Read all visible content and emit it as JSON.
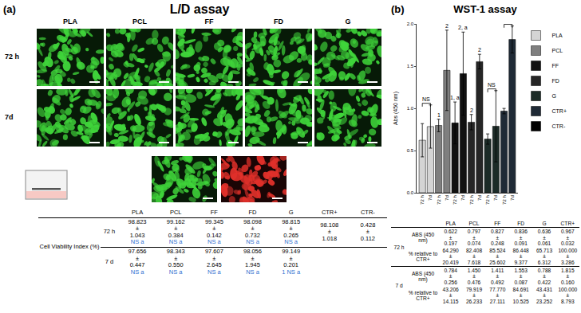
{
  "sign": "±",
  "panel_a": {
    "label": "(a)",
    "title": "L/D assay",
    "columns": [
      "PLA",
      "PCL",
      "FF",
      "FD",
      "G"
    ],
    "rows": [
      "72 h",
      "7d"
    ],
    "table": {
      "row_title": "Cell Viability Index (%)",
      "header": [
        "PLA",
        "PCL",
        "FF",
        "FD",
        "G",
        "CTR+",
        "CTR-"
      ],
      "rows": [
        {
          "time": "72 h",
          "cells": [
            {
              "mean": "98.823",
              "sd": "1.043",
              "note": "NS a"
            },
            {
              "mean": "99.162",
              "sd": "0.384",
              "note": "NS a"
            },
            {
              "mean": "99.345",
              "sd": "0.142",
              "note": "NS a"
            },
            {
              "mean": "98.098",
              "sd": "0.732",
              "note": "NS a"
            },
            {
              "mean": "98.815",
              "sd": "0.265",
              "note": "NS a"
            },
            {
              "mean": "98.108",
              "sd": "1.018"
            },
            {
              "mean": "0.428",
              "sd": "0.112"
            }
          ]
        },
        {
          "time": "7 d",
          "cells": [
            {
              "mean": "97.656",
              "sd": "0.447",
              "note": "NS a"
            },
            {
              "mean": "98.343",
              "sd": "0.550",
              "note": "NS a"
            },
            {
              "mean": "97.607",
              "sd": "2.645",
              "note": "NS a"
            },
            {
              "mean": "98.056",
              "sd": "1.945",
              "note": "NS a"
            },
            {
              "mean": "99.149",
              "sd": "0.201",
              "note": "1 NS a"
            },
            null,
            null
          ]
        }
      ]
    }
  },
  "panel_b": {
    "label": "(b)",
    "table": {
      "header": [
        "PLA",
        "PCL",
        "FF",
        "FD",
        "G",
        "CTR+"
      ],
      "rows": [
        {
          "time": "72 h",
          "measures": [
            {
              "name": "ABS (450 nm)",
              "cells": [
                {
                  "mean": "0.622",
                  "sd": "0.197"
                },
                {
                  "mean": "0.797",
                  "sd": "0.074"
                },
                {
                  "mean": "0.827",
                  "sd": "0.248"
                },
                {
                  "mean": "0.836",
                  "sd": "0.091"
                },
                {
                  "mean": "0.636",
                  "sd": "0.061"
                },
                {
                  "mean": "0.967",
                  "sd": "0.032"
                }
              ]
            },
            {
              "name": "% relative to CTR+",
              "cells": [
                {
                  "mean": "64.290",
                  "sd": "20.419"
                },
                {
                  "mean": "82.408",
                  "sd": "7.618"
                },
                {
                  "mean": "85.524",
                  "sd": "25.602"
                },
                {
                  "mean": "86.448",
                  "sd": "9.377"
                },
                {
                  "mean": "65.713",
                  "sd": "6.312"
                },
                {
                  "mean": "100.000",
                  "sd": "3.286"
                }
              ]
            }
          ]
        },
        {
          "time": "7 d",
          "measures": [
            {
              "name": "ABS (450 nm)",
              "cells": [
                {
                  "mean": "0.784",
                  "sd": "0.256"
                },
                {
                  "mean": "1.450",
                  "sd": "0.476"
                },
                {
                  "mean": "1.411",
                  "sd": "0.492"
                },
                {
                  "mean": "1.553",
                  "sd": "0.087"
                },
                {
                  "mean": "0.788",
                  "sd": "0.422"
                },
                {
                  "mean": "1.815",
                  "sd": "0.160"
                }
              ]
            },
            {
              "name": "% relative to CTR+",
              "cells": [
                {
                  "mean": "43.206",
                  "sd": "14.115"
                },
                {
                  "mean": "79.919",
                  "sd": "26.233"
                },
                {
                  "mean": "77.770",
                  "sd": "27.111"
                },
                {
                  "mean": "84.691",
                  "sd": "10.525"
                },
                {
                  "mean": "43.431",
                  "sd": "23.252"
                },
                {
                  "mean": "100.000",
                  "sd": "8.793"
                }
              ]
            }
          ]
        }
      ]
    }
  },
  "chart_data": {
    "type": "bar",
    "title": "WST-1 assay",
    "y_label": "Abs (450 nm)",
    "categories": [
      "72 h",
      "7d",
      "72 h",
      "7d",
      "72 h",
      "7d",
      "72 h",
      "7d",
      "72 h",
      "7d",
      "72 h",
      "7d"
    ],
    "series": [
      {
        "name": "PLA",
        "color": "#d4d4d4",
        "values": [
          0.622,
          0.784,
          null,
          null,
          null,
          null,
          null,
          null,
          null,
          null,
          null,
          null
        ],
        "errors": [
          0.197,
          0.256,
          null,
          null,
          null,
          null,
          null,
          null,
          null,
          null,
          null,
          null
        ]
      },
      {
        "name": "PCL",
        "color": "#7f7f7f",
        "values": [
          null,
          null,
          0.797,
          1.45,
          null,
          null,
          null,
          null,
          null,
          null,
          null,
          null
        ],
        "errors": [
          null,
          null,
          0.074,
          0.476,
          null,
          null,
          null,
          null,
          null,
          null,
          null,
          null
        ]
      },
      {
        "name": "FF",
        "color": "#111111",
        "values": [
          null,
          null,
          null,
          null,
          0.827,
          1.411,
          null,
          null,
          null,
          null,
          null,
          null
        ],
        "errors": [
          null,
          null,
          null,
          null,
          0.248,
          0.492,
          null,
          null,
          null,
          null,
          null,
          null
        ]
      },
      {
        "name": "FD",
        "color": "#262626",
        "values": [
          null,
          null,
          null,
          null,
          null,
          null,
          0.836,
          1.553,
          null,
          null,
          null,
          null
        ],
        "errors": [
          null,
          null,
          null,
          null,
          null,
          null,
          0.091,
          0.087,
          null,
          null,
          null,
          null
        ]
      },
      {
        "name": "G",
        "color": "#1c2b27",
        "values": [
          null,
          null,
          null,
          null,
          null,
          null,
          null,
          null,
          0.636,
          0.788,
          null,
          null
        ],
        "errors": [
          null,
          null,
          null,
          null,
          null,
          null,
          null,
          null,
          0.061,
          0.422,
          null,
          null
        ]
      },
      {
        "name": "CTR+",
        "color": "#1f2a36",
        "values": [
          null,
          null,
          null,
          null,
          null,
          null,
          null,
          null,
          null,
          null,
          0.967,
          1.815
        ],
        "errors": [
          null,
          null,
          null,
          null,
          null,
          null,
          null,
          null,
          null,
          null,
          0.032,
          0.16
        ]
      },
      {
        "name": "CTR-",
        "color": "#000000",
        "values": [
          null,
          null,
          null,
          null,
          null,
          null,
          null,
          null,
          null,
          null,
          null,
          null
        ],
        "errors": [
          null,
          null,
          null,
          null,
          null,
          null,
          null,
          null,
          null,
          null,
          null,
          null
        ]
      }
    ],
    "ylim": [
      0,
      2
    ],
    "yticks": [
      {
        "value": 0,
        "label": "0.0"
      },
      0.5,
      {
        "value": 1,
        "label": "1.0"
      },
      1.5,
      {
        "value": 2,
        "label": "2.0"
      }
    ],
    "grid": false,
    "legend": "right",
    "annotations": [
      {
        "text": "1",
        "category": 2
      },
      {
        "text": "2",
        "category": 3
      },
      {
        "text": "1, a",
        "category": 4
      },
      {
        "text": "2, a",
        "category": 5
      },
      {
        "text": "2",
        "category": 6
      },
      {
        "text": "2",
        "category": 7
      }
    ],
    "brackets": [
      {
        "from": 0,
        "to": 1,
        "text": "NS"
      },
      {
        "from": 8,
        "to": 9,
        "text": "NS"
      },
      {
        "from": 10,
        "to": 11
      }
    ]
  }
}
